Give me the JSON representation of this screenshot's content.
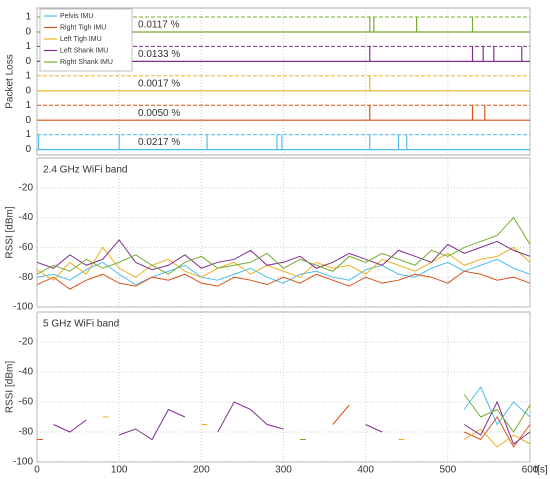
{
  "chart_data": [
    {
      "type": "events",
      "ylabel": "Packet Loss",
      "xlim": [
        0,
        600
      ],
      "xticks": [
        0,
        100,
        200,
        300,
        400,
        500,
        600
      ],
      "ylim": [
        0,
        1
      ],
      "yticks": [
        0,
        1
      ],
      "grid": true,
      "legend": "upper left",
      "series": [
        {
          "name": "Pelvis IMU",
          "color": "#4dbeee",
          "events": [
            2,
            100,
            207,
            292,
            298,
            405,
            440,
            450
          ],
          "loss": 0.0217,
          "loss_label": "0.0217 %"
        },
        {
          "name": "Right Tigh IMU",
          "color": "#d95319",
          "events": [
            405,
            530,
            545
          ],
          "loss": 0.005,
          "loss_label": "0.0050 %"
        },
        {
          "name": "Left Tigh IMU",
          "color": "#edb120",
          "events": [
            405
          ],
          "loss": 0.0017,
          "loss_label": "0.0017 %"
        },
        {
          "name": "Left Shank IMU",
          "color": "#7e2f8e",
          "events": [
            405,
            530,
            543,
            556,
            590
          ],
          "loss": 0.0133,
          "loss_label": "0.0133 %"
        },
        {
          "name": "Right Shank IMU",
          "color": "#77ac30",
          "events": [
            405,
            410,
            462,
            530
          ],
          "loss": 0.0117,
          "loss_label": "0.0117 %"
        }
      ]
    },
    {
      "type": "line",
      "title": "2.4 GHz WiFi band",
      "ylabel": "RSSI [dBm]",
      "xlim": [
        0,
        600
      ],
      "xticks": [
        0,
        100,
        200,
        300,
        400,
        500,
        600
      ],
      "ylim": [
        -100,
        0
      ],
      "yticks": [
        -100,
        -80,
        -60,
        -40,
        -20
      ],
      "grid": true,
      "x": [
        0,
        20,
        40,
        60,
        80,
        100,
        120,
        140,
        160,
        180,
        200,
        220,
        240,
        260,
        280,
        300,
        320,
        340,
        360,
        380,
        400,
        420,
        440,
        460,
        480,
        500,
        520,
        540,
        560,
        580,
        600
      ],
      "series": [
        {
          "name": "Pelvis IMU",
          "color": "#4dbeee",
          "values": [
            -80,
            -78,
            -82,
            -75,
            -70,
            -78,
            -85,
            -80,
            -76,
            -72,
            -80,
            -82,
            -78,
            -74,
            -80,
            -84,
            -78,
            -76,
            -80,
            -82,
            -75,
            -72,
            -78,
            -80,
            -74,
            -70,
            -76,
            -72,
            -68,
            -74,
            -78
          ]
        },
        {
          "name": "Right Tigh IMU",
          "color": "#d95319",
          "values": [
            -85,
            -80,
            -88,
            -82,
            -78,
            -84,
            -86,
            -80,
            -82,
            -78,
            -84,
            -86,
            -80,
            -82,
            -85,
            -80,
            -84,
            -78,
            -82,
            -86,
            -80,
            -84,
            -82,
            -78,
            -80,
            -84,
            -76,
            -78,
            -82,
            -80,
            -84
          ]
        },
        {
          "name": "Left Tigh IMU",
          "color": "#edb120",
          "values": [
            -75,
            -82,
            -70,
            -78,
            -60,
            -74,
            -80,
            -72,
            -68,
            -76,
            -80,
            -74,
            -70,
            -78,
            -72,
            -76,
            -80,
            -70,
            -74,
            -72,
            -78,
            -68,
            -72,
            -76,
            -70,
            -64,
            -72,
            -68,
            -66,
            -60,
            -70
          ]
        },
        {
          "name": "Left Shank IMU",
          "color": "#7e2f8e",
          "values": [
            -70,
            -74,
            -65,
            -72,
            -68,
            -55,
            -70,
            -75,
            -72,
            -65,
            -74,
            -70,
            -68,
            -62,
            -72,
            -70,
            -66,
            -74,
            -70,
            -64,
            -68,
            -72,
            -62,
            -66,
            -70,
            -58,
            -64,
            -60,
            -56,
            -62,
            -66
          ]
        },
        {
          "name": "Right Shank IMU",
          "color": "#77ac30",
          "values": [
            -78,
            -72,
            -76,
            -68,
            -74,
            -70,
            -65,
            -72,
            -78,
            -70,
            -66,
            -74,
            -72,
            -70,
            -64,
            -74,
            -68,
            -72,
            -76,
            -66,
            -70,
            -64,
            -68,
            -72,
            -62,
            -66,
            -60,
            -56,
            -52,
            -40,
            -58
          ]
        }
      ]
    },
    {
      "type": "line",
      "title": "5 GHz WiFi band",
      "ylabel": "RSSI [dBm]",
      "xlabel": "t[s]",
      "xlim": [
        0,
        600
      ],
      "xticks": [
        0,
        100,
        200,
        300,
        400,
        500,
        600
      ],
      "ylim": [
        -100,
        0
      ],
      "yticks": [
        -100,
        -80,
        -60,
        -40,
        -20
      ],
      "grid": true,
      "x": [
        0,
        20,
        40,
        60,
        80,
        100,
        120,
        140,
        160,
        180,
        200,
        220,
        240,
        260,
        280,
        300,
        320,
        340,
        360,
        380,
        400,
        420,
        440,
        460,
        480,
        500,
        520,
        540,
        560,
        580,
        600
      ],
      "series": [
        {
          "name": "Pelvis IMU",
          "color": "#4dbeee",
          "values": [
            null,
            null,
            null,
            null,
            null,
            null,
            null,
            null,
            null,
            null,
            null,
            null,
            null,
            null,
            null,
            null,
            null,
            null,
            null,
            null,
            null,
            null,
            null,
            null,
            null,
            null,
            -65,
            -50,
            -75,
            -60,
            -70
          ]
        },
        {
          "name": "Right Tigh IMU",
          "color": "#d95319",
          "values": [
            -85,
            null,
            null,
            null,
            null,
            null,
            null,
            null,
            null,
            null,
            null,
            null,
            null,
            null,
            null,
            null,
            null,
            null,
            -75,
            -62,
            null,
            null,
            null,
            null,
            null,
            null,
            -80,
            -85,
            -70,
            -90,
            -75
          ]
        },
        {
          "name": "Left Tigh IMU",
          "color": "#edb120",
          "values": [
            null,
            null,
            null,
            null,
            -70,
            null,
            null,
            null,
            null,
            null,
            -75,
            null,
            null,
            null,
            null,
            null,
            null,
            null,
            null,
            null,
            null,
            null,
            -85,
            null,
            null,
            null,
            -85,
            -78,
            -90,
            -82,
            -88
          ]
        },
        {
          "name": "Left Shank IMU",
          "color": "#7e2f8e",
          "values": [
            null,
            -75,
            -80,
            -72,
            null,
            -82,
            -78,
            -85,
            -65,
            -70,
            null,
            -80,
            -60,
            -65,
            -75,
            -78,
            null,
            null,
            null,
            null,
            -75,
            -80,
            null,
            null,
            null,
            null,
            -75,
            -82,
            -60,
            -88,
            -80
          ]
        },
        {
          "name": "Right Shank IMU",
          "color": "#77ac30",
          "values": [
            null,
            null,
            null,
            null,
            null,
            null,
            null,
            null,
            null,
            null,
            null,
            null,
            null,
            null,
            null,
            null,
            -85,
            null,
            null,
            null,
            null,
            null,
            null,
            null,
            null,
            null,
            -55,
            -70,
            -65,
            -80,
            -62
          ]
        }
      ]
    }
  ]
}
